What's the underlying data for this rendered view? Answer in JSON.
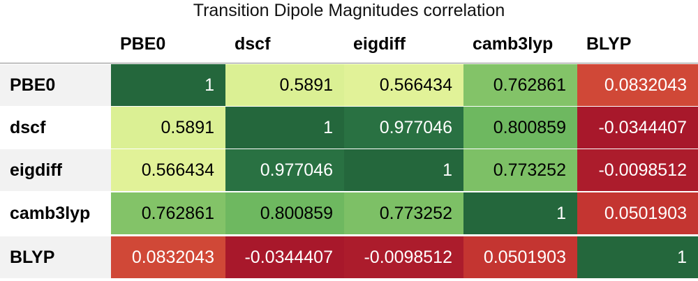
{
  "chart_data": {
    "type": "heatmap",
    "title": "Transition Dipole Magnitudes correlation",
    "columns": [
      "PBE0",
      "dscf",
      "eigdiff",
      "camb3lyp",
      "BLYP"
    ],
    "rows": [
      "PBE0",
      "dscf",
      "eigdiff",
      "camb3lyp",
      "BLYP"
    ],
    "values": [
      [
        1,
        0.5891,
        0.566434,
        0.762861,
        0.0832043
      ],
      [
        0.5891,
        1,
        0.977046,
        0.800859,
        -0.0344407
      ],
      [
        0.566434,
        0.977046,
        1,
        0.773252,
        -0.0098512
      ],
      [
        0.762861,
        0.800859,
        0.773252,
        1,
        0.0501903
      ],
      [
        0.0832043,
        -0.0344407,
        -0.0098512,
        0.0501903,
        1
      ]
    ],
    "labels": [
      [
        "1",
        "0.5891",
        "0.566434",
        "0.762861",
        "0.0832043"
      ],
      [
        "0.5891",
        "1",
        "0.977046",
        "0.800859",
        "-0.0344407"
      ],
      [
        "0.566434",
        "0.977046",
        "1",
        "0.773252",
        "-0.0098512"
      ],
      [
        "0.762861",
        "0.800859",
        "0.773252",
        "1",
        "0.0501903"
      ],
      [
        "0.0832043",
        "-0.0344407",
        "-0.0098512",
        "0.0501903",
        "1"
      ]
    ],
    "colormap": "RdYlGn"
  }
}
